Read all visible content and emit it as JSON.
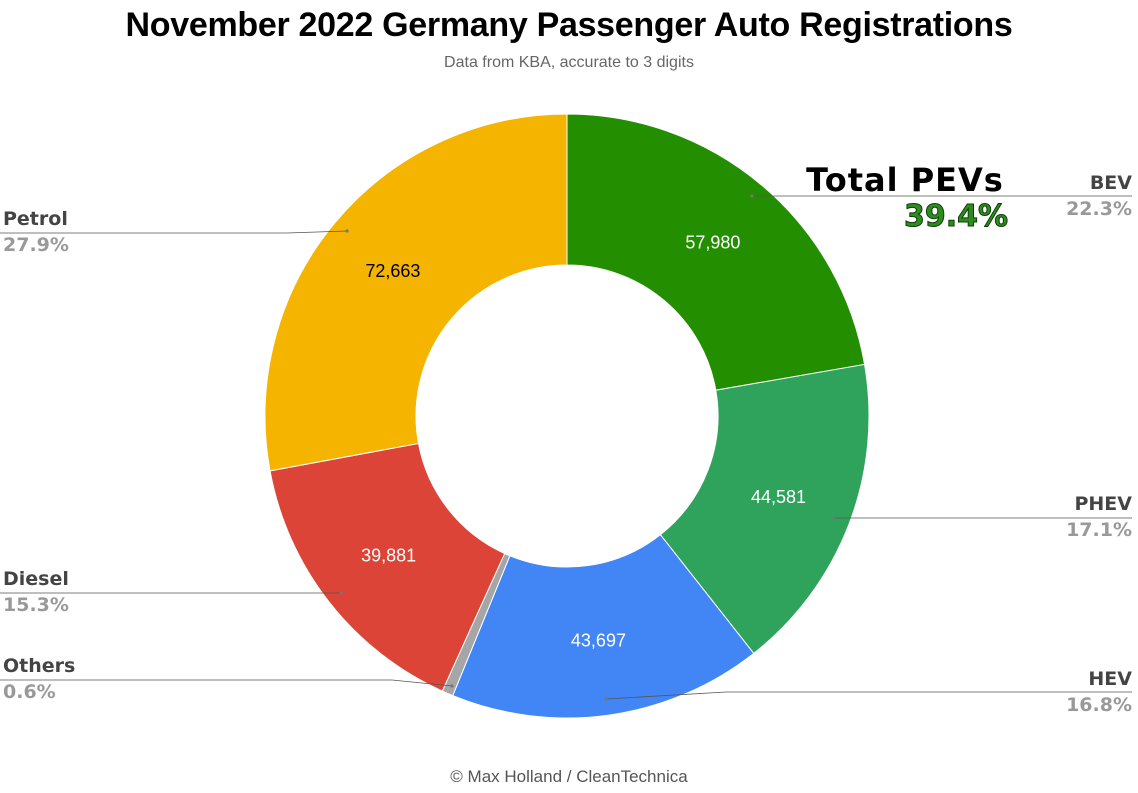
{
  "chart_data": {
    "type": "pie",
    "donut": true,
    "title": "November 2022 Germany Passenger Auto Registrations",
    "subtitle": "Data from KBA, accurate to 3 digits",
    "credit": "© Max Holland / CleanTechnica",
    "slices": [
      {
        "id": "bev",
        "name": "BEV",
        "value": 57980,
        "value_label": "57,980",
        "percent_label": "22.3%",
        "color": "#238f00",
        "value_color": "#ffffff"
      },
      {
        "id": "phev",
        "name": "PHEV",
        "value": 44581,
        "value_label": "44,581",
        "percent_label": "17.1%",
        "color": "#2fa35b",
        "value_color": "#ffffff"
      },
      {
        "id": "hev",
        "name": "HEV",
        "value": 43697,
        "value_label": "43,697",
        "percent_label": "16.8%",
        "color": "#4285f4",
        "value_color": "#ffffff"
      },
      {
        "id": "others",
        "name": "Others",
        "value": 1560,
        "value_label": "",
        "percent_label": "0.6%",
        "color": "#a6a6a6",
        "value_color": "#ffffff"
      },
      {
        "id": "diesel",
        "name": "Diesel",
        "value": 39881,
        "value_label": "39,881",
        "percent_label": "15.3%",
        "color": "#db4437",
        "value_color": "#ffffff"
      },
      {
        "id": "petrol",
        "name": "Petrol",
        "value": 72663,
        "value_label": "72,663",
        "percent_label": "27.9%",
        "color": "#f4b400",
        "value_color": "#000000"
      }
    ],
    "annotation": {
      "title": "Total PEVs",
      "value": "39.4%"
    }
  }
}
